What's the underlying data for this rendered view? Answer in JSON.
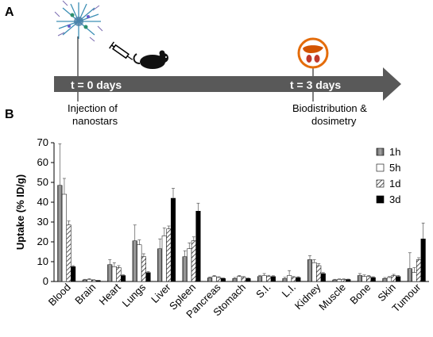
{
  "panel_a": {
    "letter": "A",
    "events": [
      {
        "label": "t = 0 days",
        "caption": [
          "Injection of",
          "nanostars"
        ],
        "icons": [
          "nanostar-icon",
          "syringe-icon",
          "mouse-icon"
        ]
      },
      {
        "label": "t = 3 days",
        "caption": [
          "Biodistribution &",
          "dosimetry"
        ],
        "icons": [
          "liver-kidney-icon"
        ]
      }
    ],
    "colors": {
      "arrow": "#595959",
      "icon_circle": "#e46c0a",
      "liver": "#d35400",
      "kidney": "#c0392b"
    }
  },
  "panel_b": {
    "letter": "B"
  },
  "chart_data": {
    "type": "bar",
    "title": "",
    "ylabel": "Uptake (% ID/g)",
    "xlabel": "",
    "ylim": [
      0,
      70
    ],
    "yticks": [
      0,
      10,
      20,
      30,
      40,
      50,
      60,
      70
    ],
    "grid": false,
    "legend_position": "top-right",
    "categories": [
      "Blood",
      "Brain",
      "Heart",
      "Lungs",
      "Liver",
      "Spleen",
      "Pancreas",
      "Stomach",
      "S.I.",
      "L.I.",
      "Kidney",
      "Muscle",
      "Bone",
      "Skin",
      "Tumour"
    ],
    "series": [
      {
        "name": "1h",
        "pattern": "grey-gradient",
        "values": [
          48.5,
          0.8,
          8.5,
          20.5,
          16.5,
          12.5,
          1.8,
          1.5,
          2.5,
          1.5,
          11.0,
          0.8,
          3.0,
          1.5,
          6.5
        ],
        "errors": [
          21.0,
          0.3,
          2.5,
          8.0,
          5.0,
          3.0,
          0.5,
          0.5,
          0.6,
          0.6,
          2.0,
          0.3,
          1.0,
          0.5,
          8.0
        ]
      },
      {
        "name": "5h",
        "pattern": "white",
        "values": [
          44.0,
          1.0,
          7.5,
          18.5,
          23.0,
          16.5,
          2.5,
          2.5,
          3.0,
          3.0,
          9.5,
          1.0,
          2.5,
          2.0,
          4.5
        ],
        "errors": [
          8.0,
          0.4,
          2.0,
          2.5,
          4.0,
          3.0,
          0.5,
          0.5,
          1.0,
          2.5,
          1.5,
          0.3,
          0.8,
          0.5,
          2.5
        ]
      },
      {
        "name": "1d",
        "pattern": "hatched",
        "values": [
          28.5,
          0.7,
          7.0,
          12.5,
          26.5,
          20.5,
          2.0,
          2.0,
          2.5,
          2.0,
          8.0,
          1.0,
          2.5,
          3.0,
          11.0
        ],
        "errors": [
          2.0,
          0.2,
          1.0,
          1.5,
          1.5,
          2.0,
          0.4,
          0.5,
          0.6,
          0.5,
          1.0,
          0.3,
          0.5,
          0.6,
          1.0
        ]
      },
      {
        "name": "3d",
        "pattern": "black",
        "values": [
          7.5,
          0.5,
          3.0,
          4.5,
          42.0,
          35.5,
          1.5,
          1.5,
          2.5,
          2.0,
          4.0,
          1.0,
          2.0,
          2.5,
          21.5
        ],
        "errors": [
          0.5,
          0.1,
          0.4,
          0.5,
          5.0,
          4.0,
          0.3,
          0.3,
          0.4,
          0.4,
          0.5,
          0.2,
          0.4,
          0.5,
          8.0
        ]
      }
    ]
  }
}
